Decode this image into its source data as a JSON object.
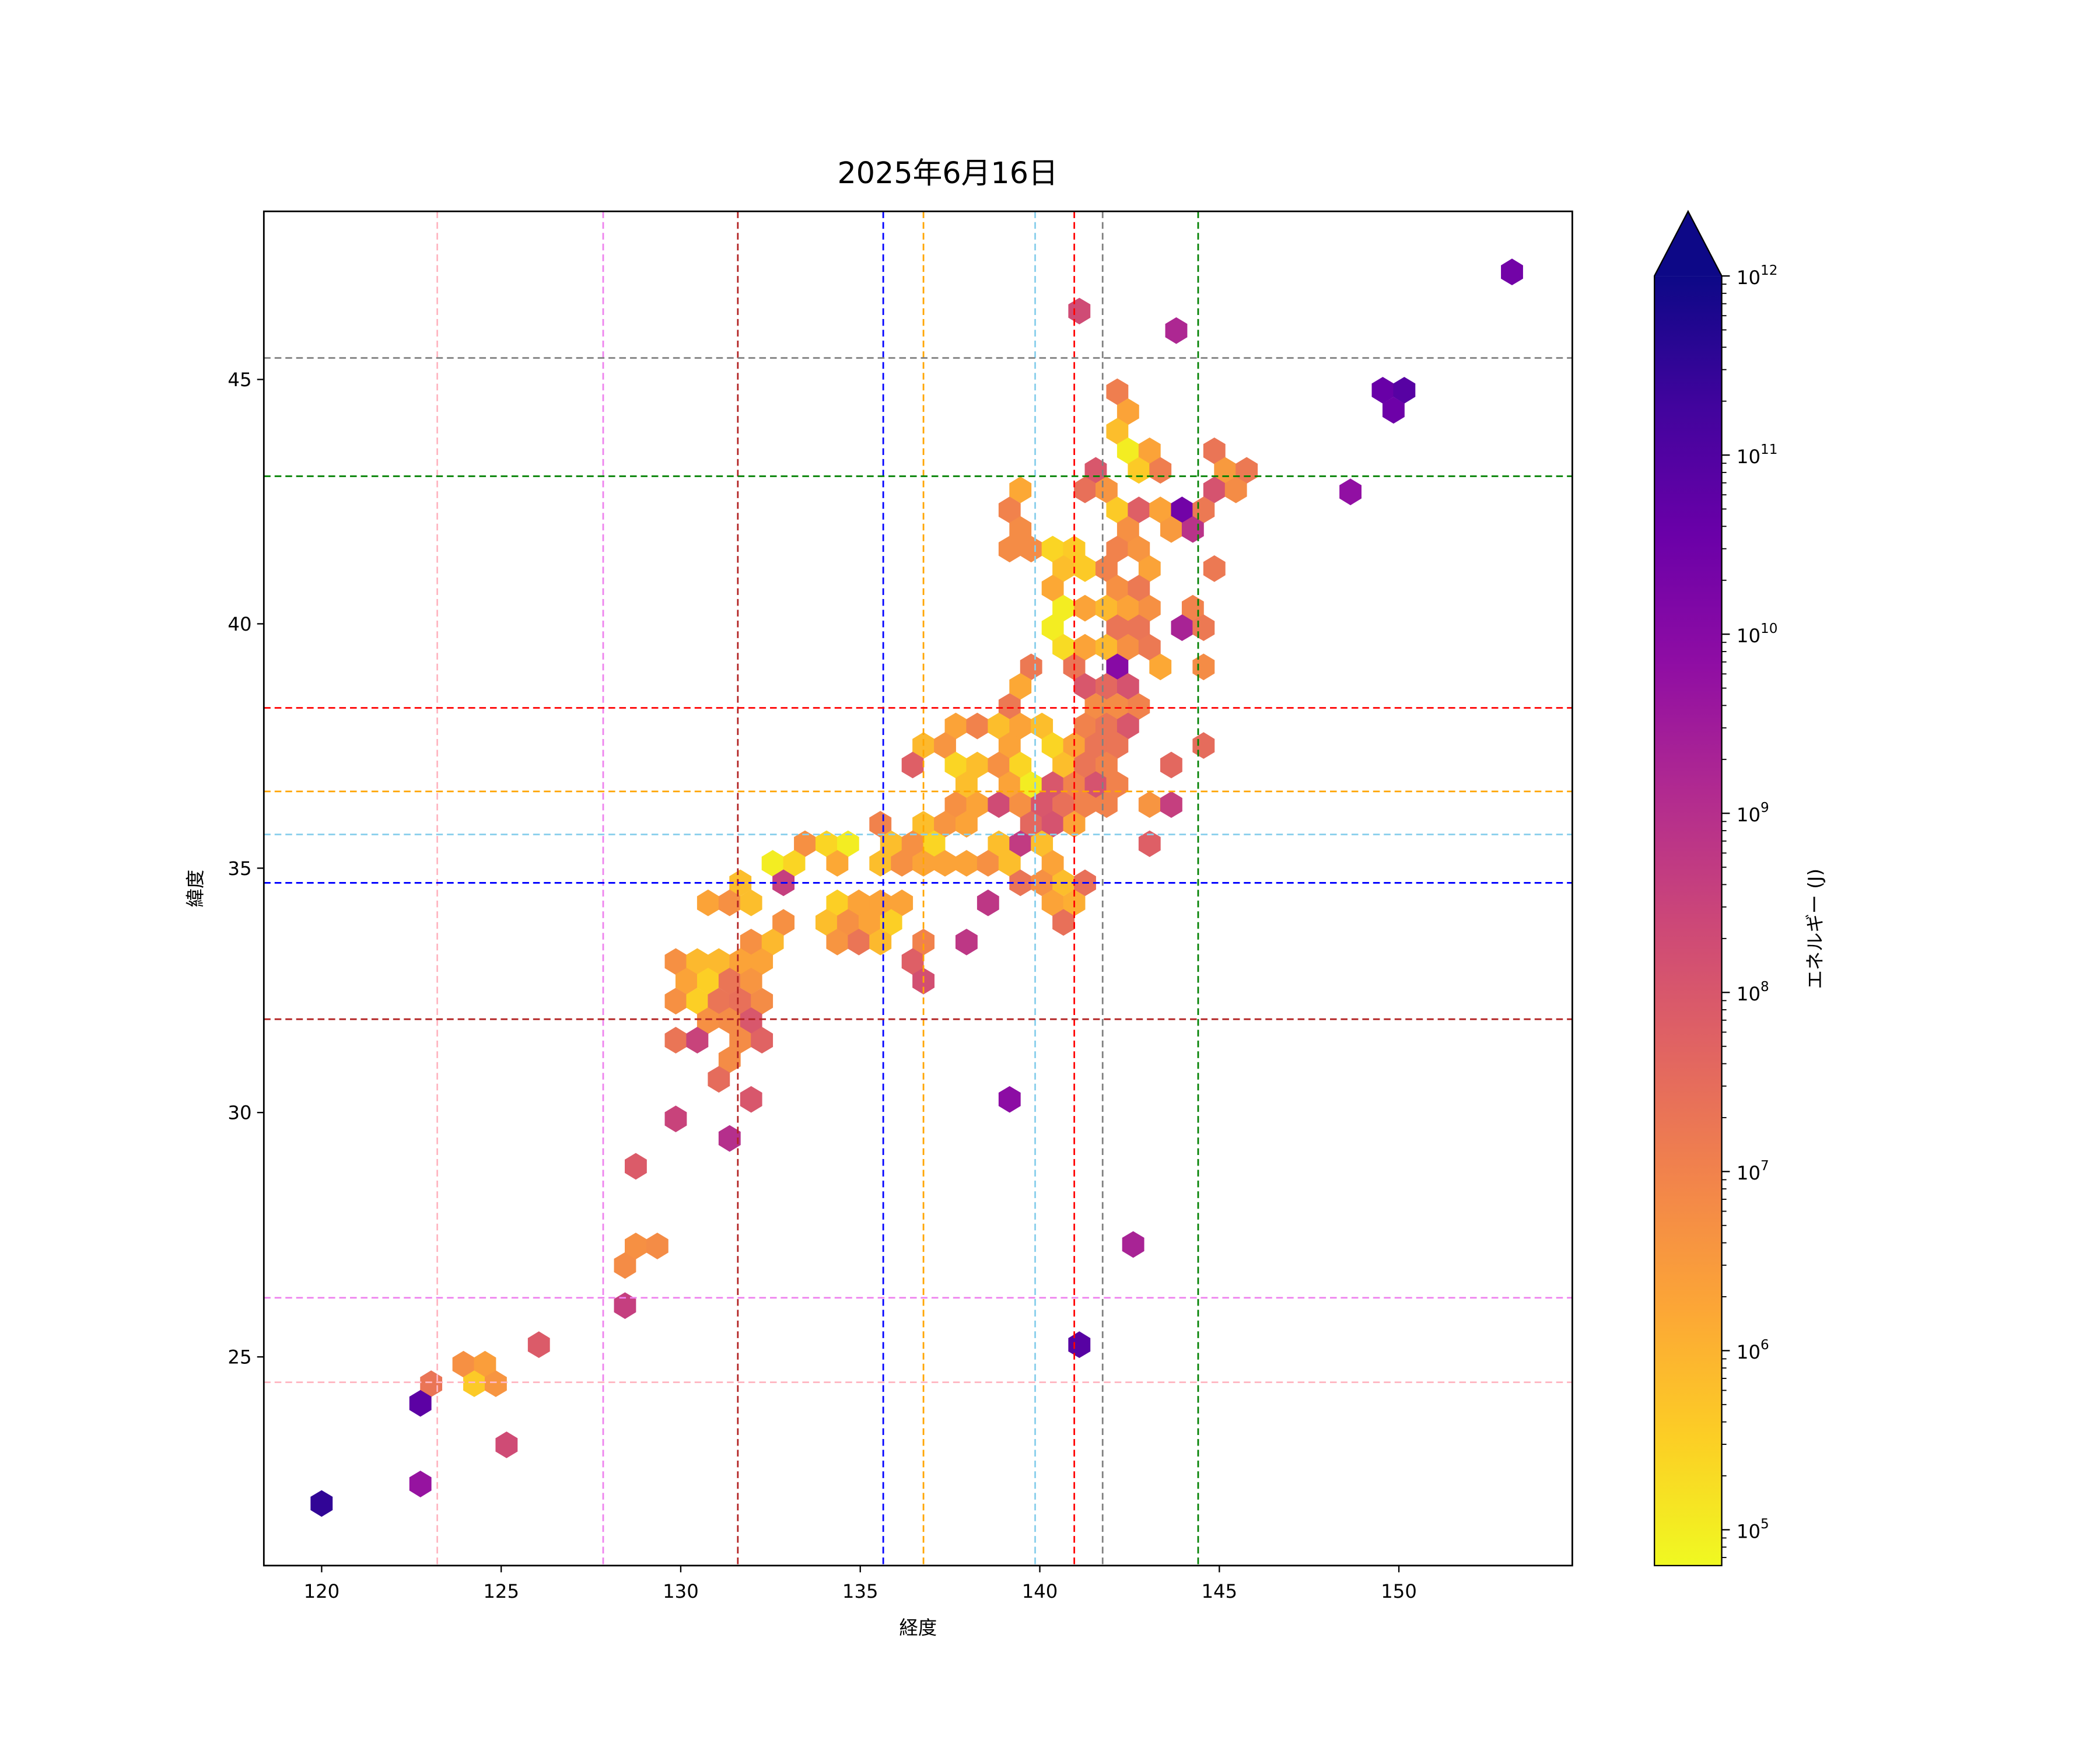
{
  "chart_data": {
    "type": "hexbin",
    "title": "2025年6月16日",
    "xlabel": "経度",
    "ylabel": "緯度",
    "xlim": [
      118.39,
      154.83
    ],
    "ylim": [
      20.73,
      48.44
    ],
    "xticks": [
      120,
      125,
      130,
      135,
      140,
      145,
      150
    ],
    "yticks": [
      25,
      30,
      35,
      40,
      45
    ],
    "colorbar": {
      "label": "エネルギー (J)",
      "scale": "log",
      "range_log10": [
        4.8,
        12
      ],
      "extend": "max",
      "colormap": "plasma_r",
      "ticks": [
        {
          "log10": 5,
          "base": "10",
          "exp": "5"
        },
        {
          "log10": 6,
          "base": "10",
          "exp": "6"
        },
        {
          "log10": 7,
          "base": "10",
          "exp": "7"
        },
        {
          "log10": 8,
          "base": "10",
          "exp": "8"
        },
        {
          "log10": 9,
          "base": "10",
          "exp": "9"
        },
        {
          "log10": 10,
          "base": "10",
          "exp": "10"
        },
        {
          "log10": 11,
          "base": "10",
          "exp": "11"
        },
        {
          "log10": 12,
          "base": "10",
          "exp": "12"
        }
      ]
    },
    "colormap_stops": [
      "#0d0887",
      "#41049d",
      "#6a00a8",
      "#8f0da4",
      "#b12a90",
      "#cc4778",
      "#e16462",
      "#f2844b",
      "#fca636",
      "#fcce25",
      "#f0f921"
    ],
    "reference_lines": [
      {
        "axis": "x",
        "value": 123.22,
        "color": "#ffb6c1"
      },
      {
        "axis": "x",
        "value": 127.84,
        "color": "#ee82ee"
      },
      {
        "axis": "x",
        "value": 131.59,
        "color": "#b22222"
      },
      {
        "axis": "x",
        "value": 135.64,
        "color": "#0000ff"
      },
      {
        "axis": "x",
        "value": 136.76,
        "color": "#ffa500"
      },
      {
        "axis": "x",
        "value": 139.87,
        "color": "#87ceeb"
      },
      {
        "axis": "x",
        "value": 140.96,
        "color": "#ff0000"
      },
      {
        "axis": "x",
        "value": 141.75,
        "color": "#808080"
      },
      {
        "axis": "x",
        "value": 144.41,
        "color": "#008000"
      },
      {
        "axis": "y",
        "value": 45.44,
        "color": "#808080"
      },
      {
        "axis": "y",
        "value": 43.02,
        "color": "#008000"
      },
      {
        "axis": "y",
        "value": 38.28,
        "color": "#ff0000"
      },
      {
        "axis": "y",
        "value": 36.57,
        "color": "#ffa500"
      },
      {
        "axis": "y",
        "value": 35.69,
        "color": "#87ceeb"
      },
      {
        "axis": "y",
        "value": 34.7,
        "color": "#0000ff"
      },
      {
        "axis": "y",
        "value": 31.91,
        "color": "#b22222"
      },
      {
        "axis": "y",
        "value": 26.21,
        "color": "#ee82ee"
      },
      {
        "axis": "y",
        "value": 24.48,
        "color": "#ffb6c1"
      }
    ],
    "hex_fields": [
      "lon",
      "lat",
      "log10_energy_J"
    ],
    "hexes": [
      [
        142.16,
        44.75,
        7.1
      ],
      [
        142.46,
        44.34,
        6.3
      ],
      [
        142.16,
        43.94,
        5.8
      ],
      [
        142.46,
        43.54,
        5.0
      ],
      [
        143.06,
        43.54,
        6.3
      ],
      [
        144.86,
        43.54,
        7.3
      ],
      [
        141.56,
        43.14,
        8.0
      ],
      [
        142.76,
        43.14,
        5.6
      ],
      [
        143.36,
        43.14,
        7.1
      ],
      [
        145.16,
        43.14,
        6.5
      ],
      [
        145.76,
        43.14,
        7.2
      ],
      [
        139.46,
        42.74,
        6.2
      ],
      [
        141.26,
        42.74,
        7.4
      ],
      [
        141.86,
        42.74,
        6.6
      ],
      [
        144.86,
        42.74,
        8.1
      ],
      [
        145.46,
        42.74,
        6.8
      ],
      [
        139.16,
        42.33,
        7.0
      ],
      [
        142.16,
        42.33,
        5.6
      ],
      [
        142.76,
        42.33,
        7.8
      ],
      [
        143.36,
        42.33,
        6.3
      ],
      [
        143.96,
        42.33,
        10.4
      ],
      [
        144.56,
        42.33,
        7.2
      ],
      [
        139.46,
        41.93,
        6.8
      ],
      [
        142.46,
        41.93,
        6.7
      ],
      [
        143.66,
        41.93,
        6.5
      ],
      [
        144.26,
        41.93,
        8.9
      ],
      [
        139.16,
        41.53,
        6.8
      ],
      [
        139.76,
        41.53,
        6.8
      ],
      [
        140.36,
        41.53,
        5.4
      ],
      [
        140.96,
        41.53,
        5.6
      ],
      [
        142.16,
        41.53,
        7.0
      ],
      [
        142.76,
        41.53,
        6.6
      ],
      [
        140.66,
        41.13,
        5.8
      ],
      [
        141.26,
        41.13,
        5.6
      ],
      [
        141.86,
        41.13,
        7.0
      ],
      [
        143.06,
        41.13,
        6.3
      ],
      [
        144.86,
        41.13,
        7.2
      ],
      [
        140.36,
        40.73,
        6.2
      ],
      [
        142.16,
        40.73,
        6.7
      ],
      [
        142.76,
        40.73,
        7.2
      ],
      [
        140.66,
        40.32,
        5.0
      ],
      [
        141.26,
        40.32,
        6.3
      ],
      [
        141.86,
        40.32,
        5.9
      ],
      [
        142.46,
        40.32,
        6.3
      ],
      [
        143.06,
        40.32,
        6.7
      ],
      [
        144.26,
        40.32,
        7.0
      ],
      [
        140.36,
        39.92,
        5.0
      ],
      [
        142.16,
        39.92,
        7.3
      ],
      [
        142.76,
        39.92,
        7.3
      ],
      [
        143.96,
        39.92,
        9.3
      ],
      [
        144.56,
        39.92,
        7.2
      ],
      [
        140.66,
        39.52,
        5.3
      ],
      [
        141.26,
        39.52,
        6.3
      ],
      [
        141.86,
        39.52,
        5.9
      ],
      [
        142.46,
        39.52,
        6.7
      ],
      [
        143.06,
        39.52,
        7.2
      ],
      [
        139.76,
        39.12,
        7.2
      ],
      [
        140.96,
        39.12,
        7.3
      ],
      [
        142.16,
        39.12,
        10.0
      ],
      [
        143.36,
        39.12,
        6.2
      ],
      [
        144.56,
        39.12,
        6.8
      ],
      [
        139.46,
        38.72,
        6.2
      ],
      [
        141.26,
        38.72,
        8.0
      ],
      [
        141.86,
        38.72,
        7.6
      ],
      [
        142.46,
        38.72,
        8.1
      ],
      [
        139.16,
        38.31,
        7.2
      ],
      [
        141.56,
        38.31,
        6.8
      ],
      [
        142.16,
        38.31,
        6.8
      ],
      [
        142.76,
        38.31,
        7.0
      ],
      [
        137.66,
        37.91,
        6.3
      ],
      [
        138.26,
        37.91,
        7.0
      ],
      [
        138.86,
        37.91,
        5.8
      ],
      [
        139.46,
        37.91,
        6.3
      ],
      [
        140.06,
        37.91,
        5.8
      ],
      [
        141.26,
        37.91,
        7.0
      ],
      [
        141.86,
        37.91,
        7.3
      ],
      [
        142.46,
        37.91,
        8.0
      ],
      [
        136.76,
        37.51,
        5.9
      ],
      [
        137.36,
        37.51,
        6.6
      ],
      [
        139.16,
        37.51,
        6.3
      ],
      [
        140.36,
        37.51,
        5.4
      ],
      [
        140.96,
        37.51,
        6.3
      ],
      [
        141.56,
        37.51,
        7.3
      ],
      [
        142.16,
        37.51,
        7.3
      ],
      [
        144.56,
        37.51,
        7.5
      ],
      [
        136.46,
        37.11,
        7.8
      ],
      [
        137.66,
        37.11,
        5.4
      ],
      [
        138.26,
        37.11,
        5.8
      ],
      [
        138.86,
        37.11,
        6.7
      ],
      [
        139.46,
        37.11,
        5.4
      ],
      [
        140.66,
        37.11,
        5.8
      ],
      [
        141.26,
        37.11,
        7.3
      ],
      [
        141.86,
        37.11,
        7.0
      ],
      [
        143.66,
        37.11,
        7.6
      ],
      [
        137.96,
        36.71,
        5.8
      ],
      [
        139.16,
        36.71,
        6.3
      ],
      [
        139.76,
        36.71,
        5.0
      ],
      [
        140.36,
        36.71,
        8.0
      ],
      [
        140.96,
        36.71,
        7.0
      ],
      [
        141.56,
        36.71,
        8.1
      ],
      [
        142.16,
        36.71,
        7.0
      ],
      [
        137.66,
        36.3,
        6.7
      ],
      [
        138.26,
        36.3,
        6.3
      ],
      [
        138.86,
        36.3,
        8.3
      ],
      [
        139.46,
        36.3,
        6.7
      ],
      [
        140.06,
        36.3,
        8.0
      ],
      [
        140.66,
        36.3,
        7.4
      ],
      [
        141.26,
        36.3,
        7.0
      ],
      [
        141.86,
        36.3,
        7.0
      ],
      [
        143.06,
        36.3,
        6.6
      ],
      [
        143.66,
        36.3,
        8.6
      ],
      [
        135.56,
        35.9,
        7.0
      ],
      [
        136.76,
        35.9,
        5.8
      ],
      [
        137.36,
        35.9,
        6.6
      ],
      [
        137.96,
        35.9,
        6.3
      ],
      [
        139.76,
        35.9,
        7.6
      ],
      [
        140.36,
        35.9,
        8.1
      ],
      [
        140.96,
        35.9,
        6.3
      ],
      [
        133.46,
        35.5,
        6.7
      ],
      [
        134.06,
        35.5,
        5.4
      ],
      [
        134.66,
        35.5,
        5.0
      ],
      [
        135.86,
        35.5,
        5.8
      ],
      [
        136.46,
        35.5,
        6.7
      ],
      [
        137.06,
        35.5,
        5.4
      ],
      [
        138.86,
        35.5,
        5.8
      ],
      [
        139.46,
        35.5,
        8.7
      ],
      [
        140.06,
        35.5,
        5.8
      ],
      [
        143.06,
        35.5,
        7.8
      ],
      [
        132.56,
        35.1,
        5.0
      ],
      [
        133.16,
        35.1,
        5.4
      ],
      [
        134.36,
        35.1,
        6.2
      ],
      [
        135.56,
        35.1,
        5.8
      ],
      [
        136.16,
        35.1,
        6.7
      ],
      [
        136.76,
        35.1,
        6.3
      ],
      [
        137.36,
        35.1,
        6.3
      ],
      [
        137.96,
        35.1,
        6.3
      ],
      [
        138.56,
        35.1,
        6.7
      ],
      [
        139.16,
        35.1,
        5.8
      ],
      [
        140.36,
        35.1,
        6.3
      ],
      [
        131.66,
        34.7,
        5.8
      ],
      [
        132.86,
        34.7,
        8.6
      ],
      [
        139.46,
        34.7,
        7.3
      ],
      [
        140.06,
        34.7,
        6.7
      ],
      [
        140.66,
        34.7,
        5.8
      ],
      [
        141.26,
        34.7,
        7.4
      ],
      [
        130.76,
        34.29,
        6.3
      ],
      [
        131.36,
        34.29,
        6.7
      ],
      [
        131.96,
        34.29,
        5.8
      ],
      [
        134.36,
        34.29,
        5.5
      ],
      [
        134.96,
        34.29,
        6.3
      ],
      [
        135.56,
        34.29,
        6.3
      ],
      [
        136.16,
        34.29,
        6.3
      ],
      [
        138.56,
        34.29,
        8.8
      ],
      [
        140.36,
        34.29,
        6.3
      ],
      [
        140.96,
        34.29,
        6.1
      ],
      [
        132.86,
        33.89,
        6.7
      ],
      [
        134.06,
        33.89,
        5.8
      ],
      [
        134.66,
        33.89,
        6.7
      ],
      [
        135.26,
        33.89,
        6.3
      ],
      [
        135.86,
        33.89,
        5.5
      ],
      [
        140.66,
        33.89,
        7.4
      ],
      [
        131.96,
        33.49,
        6.7
      ],
      [
        132.56,
        33.49,
        5.9
      ],
      [
        134.36,
        33.49,
        6.6
      ],
      [
        134.96,
        33.49,
        7.3
      ],
      [
        135.56,
        33.49,
        5.9
      ],
      [
        136.76,
        33.49,
        7.0
      ],
      [
        137.96,
        33.49,
        8.8
      ],
      [
        129.86,
        33.09,
        6.7
      ],
      [
        130.46,
        33.09,
        5.9
      ],
      [
        131.06,
        33.09,
        5.9
      ],
      [
        131.66,
        33.09,
        6.3
      ],
      [
        132.26,
        33.09,
        6.3
      ],
      [
        136.46,
        33.09,
        7.8
      ],
      [
        130.16,
        32.69,
        6.3
      ],
      [
        130.76,
        32.69,
        5.5
      ],
      [
        131.36,
        32.69,
        7.3
      ],
      [
        131.96,
        32.69,
        6.6
      ],
      [
        136.76,
        32.69,
        8.2
      ],
      [
        129.86,
        32.28,
        6.7
      ],
      [
        130.46,
        32.28,
        5.5
      ],
      [
        131.06,
        32.28,
        7.3
      ],
      [
        131.66,
        32.28,
        7.4
      ],
      [
        132.26,
        32.28,
        6.8
      ],
      [
        130.76,
        31.88,
        6.7
      ],
      [
        131.36,
        31.88,
        6.8
      ],
      [
        131.96,
        31.88,
        8.0
      ],
      [
        129.86,
        31.48,
        7.3
      ],
      [
        130.46,
        31.48,
        8.5
      ],
      [
        131.66,
        31.48,
        6.8
      ],
      [
        132.26,
        31.48,
        7.7
      ],
      [
        131.36,
        31.08,
        6.8
      ],
      [
        131.06,
        30.68,
        7.5
      ],
      [
        131.96,
        30.27,
        8.0
      ],
      [
        139.16,
        30.27,
        9.9
      ],
      [
        129.86,
        29.87,
        8.5
      ],
      [
        131.36,
        29.47,
        9.0
      ],
      [
        128.75,
        28.9,
        7.9
      ],
      [
        128.45,
        26.87,
        6.8
      ],
      [
        128.75,
        27.27,
        6.7
      ],
      [
        129.35,
        27.27,
        6.8
      ],
      [
        128.45,
        26.05,
        8.6
      ],
      [
        142.6,
        27.3,
        9.3
      ],
      [
        141.1,
        25.25,
        10.9
      ],
      [
        126.05,
        25.25,
        7.9
      ],
      [
        123.95,
        24.85,
        6.7
      ],
      [
        124.55,
        24.85,
        6.4
      ],
      [
        123.05,
        24.45,
        7.3
      ],
      [
        124.25,
        24.45,
        5.6
      ],
      [
        124.85,
        24.45,
        6.6
      ],
      [
        122.75,
        24.05,
        10.8
      ],
      [
        125.15,
        23.2,
        8.3
      ],
      [
        122.75,
        22.4,
        9.7
      ],
      [
        120.0,
        22.0,
        11.5
      ],
      [
        141.1,
        46.4,
        8.3
      ],
      [
        143.8,
        46.0,
        9.2
      ],
      [
        153.15,
        47.2,
        10.4
      ],
      [
        149.55,
        44.78,
        10.6
      ],
      [
        150.15,
        44.78,
        10.9
      ],
      [
        149.85,
        44.37,
        10.5
      ],
      [
        148.65,
        42.7,
        9.8
      ]
    ]
  }
}
